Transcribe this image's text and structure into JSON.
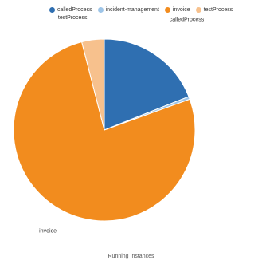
{
  "chart_data": {
    "type": "pie",
    "title": "Running Instances",
    "legend": {
      "placement": "top",
      "items": [
        {
          "label": "calledProcess",
          "color": "#2F6FB1"
        },
        {
          "label": "incident-management",
          "color": "#9EC5E8"
        },
        {
          "label": "invoice",
          "color": "#F28C1E"
        },
        {
          "label": "testProcess",
          "color": "#F7C18D"
        }
      ]
    },
    "series": [
      {
        "name": "calledProcess",
        "value": 19.0,
        "color": "#2F6FB1"
      },
      {
        "name": "incident-management",
        "value": 0.5,
        "color": "#9EC5E8"
      },
      {
        "name": "invoice",
        "value": 76.5,
        "color": "#F28C1E"
      },
      {
        "name": "testProcess",
        "value": 4.0,
        "color": "#F7C18D"
      }
    ],
    "labels": [
      "calledProcess",
      "invoice",
      "testProcess"
    ]
  }
}
